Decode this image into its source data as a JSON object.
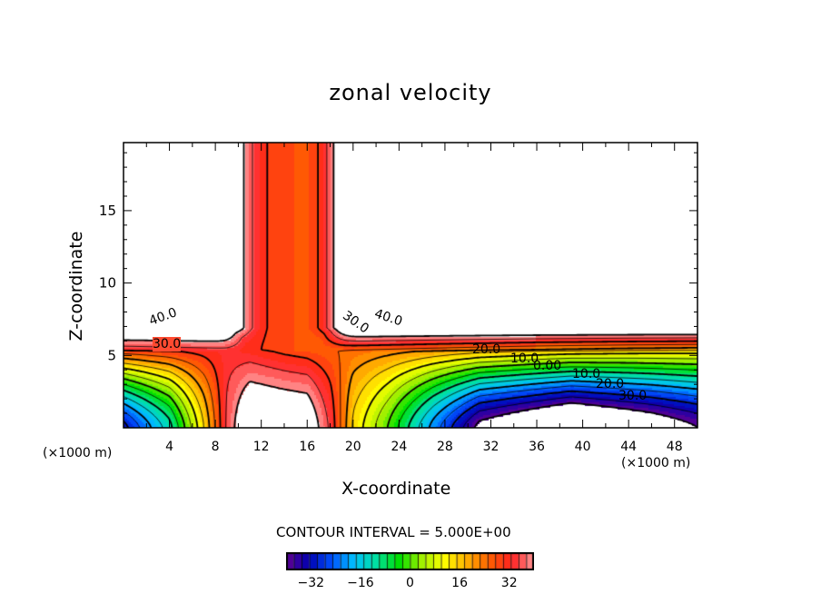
{
  "chart_data": {
    "type": "heatmap",
    "subtype": "filled-contour",
    "title": "zonal velocity",
    "xlabel": "X-coordinate",
    "ylabel": "Z-coordinate",
    "x_unit_left": "(×1000 m)",
    "x_unit_right": "(×1000 m)",
    "xlim": [
      0,
      50
    ],
    "ylim": [
      0,
      19.7
    ],
    "xticks": [
      "4",
      "8",
      "12",
      "16",
      "20",
      "24",
      "28",
      "32",
      "36",
      "40",
      "44",
      "48"
    ],
    "yticks": [
      "5",
      "10",
      "15"
    ],
    "contour_interval_text": "CONTOUR INTERVAL = 5.000E+00",
    "contour_interval": 5,
    "colorbar": {
      "range": [
        -40,
        40
      ],
      "ticks": [
        "-32",
        "-16",
        "0",
        "16",
        "32"
      ]
    },
    "contour_labels": [
      "40.0",
      "30.0",
      "40.0",
      "30.0",
      "20.0",
      "10.0",
      "0.00",
      "10.0",
      "20.0",
      "30.0"
    ],
    "colormap": [
      "#600090",
      "#0000b0",
      "#0050ff",
      "#00c0ff",
      "#00e0a0",
      "#00e000",
      "#a0f000",
      "#ffff00",
      "#ffb000",
      "#ff6000",
      "#ff2020",
      "#ff9898"
    ]
  }
}
